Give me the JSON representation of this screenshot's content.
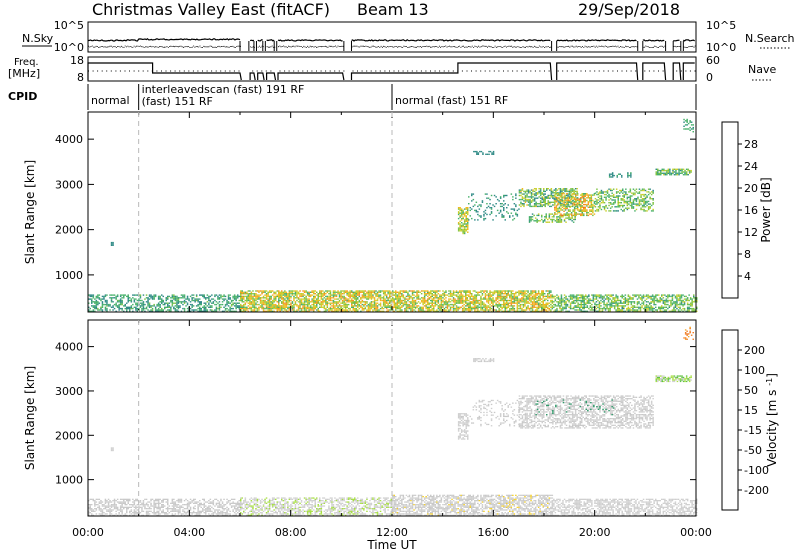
{
  "header": {
    "title": "Christmas Valley East (fitACF)",
    "beam": "Beam 13",
    "date": "29/Sep/2018"
  },
  "nsky_panel": {
    "left_label": "N.Sky",
    "right_label": "N.Search",
    "left_ticks": [
      "10^5",
      "10^0"
    ],
    "right_ticks": [
      "10^5",
      "10^0"
    ]
  },
  "freq_panel": {
    "left_label_1": "Freq.",
    "left_label_2": "[MHz]",
    "right_label": "Nave",
    "left_ticks": [
      "18",
      "8"
    ],
    "right_ticks": [
      "60",
      "0"
    ]
  },
  "cpid": {
    "label": "CPID",
    "segments": [
      {
        "start_hour": 0.0,
        "line1": "normal",
        "line2": ""
      },
      {
        "start_hour": 2.0,
        "line1": "interleavedscan (fast) 191 RF",
        "line2": "(fast) 151 RF"
      },
      {
        "start_hour": 12.0,
        "line1": "normal (fast) 151 RF",
        "line2": ""
      }
    ]
  },
  "x_axis": {
    "label": "Time UT",
    "ticks": [
      "00:00",
      "04:00",
      "08:00",
      "12:00",
      "16:00",
      "20:00",
      "00:00"
    ]
  },
  "power_colorbar": {
    "label": "Power [dB]",
    "ticks": [
      "28",
      "24",
      "20",
      "16",
      "12",
      "8",
      "4"
    ],
    "colors": [
      "#0a1ef0",
      "#2456b8",
      "#2f8a86",
      "#47b06a",
      "#7dc241",
      "#c8cf2a",
      "#f2b81b",
      "#f59320",
      "#ef6a1f",
      "#e8401f",
      "#e01414"
    ]
  },
  "velocity_colorbar": {
    "label": "Velocity [m s^-1]",
    "ticks": [
      "200",
      "100",
      "50",
      "15",
      "-15",
      "-50",
      "-100",
      "-200"
    ],
    "colors": [
      "#1d3fd1",
      "#2b6fa0",
      "#2f9a6a",
      "#5fc144",
      "#a7df44",
      "#cfcfcf",
      "#c9c9c9",
      "#f6d12a",
      "#f5a623",
      "#f07a20",
      "#ec4c1e",
      "#e51c1c"
    ]
  },
  "chart_data": [
    {
      "type": "heatmap",
      "name": "power",
      "ylabel": "Slant Range [km]",
      "xlabel": "",
      "xlim": [
        0,
        24
      ],
      "ylim": [
        180,
        4600
      ],
      "yticks": [
        1000,
        2000,
        3000,
        4000
      ],
      "ytick_labels": [
        "1000",
        "2000",
        "3000",
        "4000"
      ],
      "colorbar_range": [
        0,
        32
      ],
      "regions": [
        {
          "t0": 0.0,
          "t1": 6.0,
          "r0": 180,
          "r1": 560,
          "value": 6,
          "value2": 12,
          "density": 0.55
        },
        {
          "t0": 6.0,
          "t1": 18.3,
          "r0": 180,
          "r1": 650,
          "value": 10,
          "value2": 22,
          "density": 0.7
        },
        {
          "t0": 18.3,
          "t1": 24.0,
          "r0": 180,
          "r1": 560,
          "value": 8,
          "value2": 16,
          "density": 0.6
        },
        {
          "t0": 0.9,
          "t1": 1.0,
          "r0": 1640,
          "r1": 1720,
          "value": 6,
          "value2": 8,
          "density": 1.0
        },
        {
          "t0": 14.6,
          "t1": 15.0,
          "r0": 1900,
          "r1": 2500,
          "value": 10,
          "value2": 20,
          "density": 0.7
        },
        {
          "t0": 15.0,
          "t1": 17.0,
          "r0": 2200,
          "r1": 2800,
          "value": 6,
          "value2": 10,
          "density": 0.18
        },
        {
          "t0": 17.0,
          "t1": 19.3,
          "r0": 2500,
          "r1": 2900,
          "value": 6,
          "value2": 18,
          "density": 0.55
        },
        {
          "t0": 17.4,
          "t1": 19.2,
          "r0": 2150,
          "r1": 2350,
          "value": 8,
          "value2": 16,
          "density": 0.5
        },
        {
          "t0": 18.4,
          "t1": 20.0,
          "r0": 2300,
          "r1": 2800,
          "value": 10,
          "value2": 24,
          "density": 0.55
        },
        {
          "t0": 20.0,
          "t1": 22.3,
          "r0": 2400,
          "r1": 2900,
          "value": 8,
          "value2": 16,
          "density": 0.45
        },
        {
          "t0": 15.2,
          "t1": 16.0,
          "r0": 3650,
          "r1": 3720,
          "value": 6,
          "value2": 8,
          "density": 0.6
        },
        {
          "t0": 20.5,
          "t1": 21.5,
          "r0": 3150,
          "r1": 3250,
          "value": 6,
          "value2": 10,
          "density": 0.4
        },
        {
          "t0": 22.4,
          "t1": 23.8,
          "r0": 3200,
          "r1": 3350,
          "value": 6,
          "value2": 16,
          "density": 0.7
        },
        {
          "t0": 23.5,
          "t1": 23.9,
          "r0": 4150,
          "r1": 4450,
          "value": 8,
          "value2": 12,
          "density": 0.3
        }
      ]
    },
    {
      "type": "heatmap",
      "name": "velocity",
      "ylabel": "Slant Range [km]",
      "xlabel": "Time UT",
      "xlim": [
        0,
        24
      ],
      "ylim": [
        180,
        4600
      ],
      "yticks": [
        1000,
        2000,
        3000,
        4000
      ],
      "ytick_labels": [
        "1000",
        "2000",
        "3000",
        "4000"
      ],
      "colorbar_range": [
        -240,
        240
      ],
      "regions": [
        {
          "t0": 0.0,
          "t1": 6.0,
          "r0": 180,
          "r1": 560,
          "value": -40,
          "value2": -25,
          "density": 0.55
        },
        {
          "t0": 6.0,
          "t1": 12.0,
          "r0": 180,
          "r1": 600,
          "value": 25,
          "value2": 45,
          "density": 0.55
        },
        {
          "t0": 12.0,
          "t1": 18.3,
          "r0": 180,
          "r1": 650,
          "value": -45,
          "value2": 30,
          "density": 0.65
        },
        {
          "t0": 18.3,
          "t1": 24.0,
          "r0": 180,
          "r1": 560,
          "value": 20,
          "value2": 40,
          "density": 0.6
        },
        {
          "t0": 0.9,
          "t1": 1.0,
          "r0": 1640,
          "r1": 1720,
          "value": 30,
          "value2": 40,
          "density": 1.0
        },
        {
          "t0": 14.6,
          "t1": 15.0,
          "r0": 1900,
          "r1": 2500,
          "value": -5,
          "value2": 30,
          "density": 0.7
        },
        {
          "t0": 15.0,
          "t1": 17.0,
          "r0": 2200,
          "r1": 2800,
          "value": -5,
          "value2": 5,
          "density": 0.18
        },
        {
          "t0": 17.0,
          "t1": 22.3,
          "r0": 2150,
          "r1": 2900,
          "value": -8,
          "value2": 8,
          "density": 0.55
        },
        {
          "t0": 17.6,
          "t1": 20.8,
          "r0": 2450,
          "r1": 2800,
          "value": 120,
          "value2": 150,
          "density": 0.08
        },
        {
          "t0": 15.2,
          "t1": 16.0,
          "r0": 3650,
          "r1": 3720,
          "value": -5,
          "value2": 5,
          "density": 0.6
        },
        {
          "t0": 22.4,
          "t1": 23.8,
          "r0": 3200,
          "r1": 3350,
          "value": -5,
          "value2": 120,
          "density": 0.7
        },
        {
          "t0": 23.5,
          "t1": 23.9,
          "r0": 4150,
          "r1": 4450,
          "value": -150,
          "value2": -110,
          "density": 0.3
        }
      ]
    }
  ]
}
